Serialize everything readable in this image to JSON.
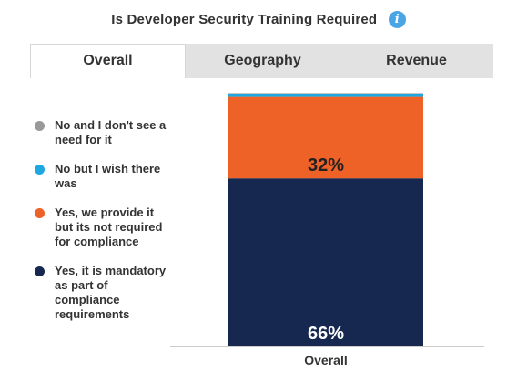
{
  "header": {
    "title": "Is Developer Security Training Required",
    "info_icon": "info-icon"
  },
  "tabs": [
    {
      "label": "Overall",
      "active": true
    },
    {
      "label": "Geography",
      "active": false
    },
    {
      "label": "Revenue",
      "active": false
    }
  ],
  "legend": {
    "items": [
      {
        "label": "No and I don't see a need for it",
        "color": "#999999"
      },
      {
        "label": "No but I wish there was",
        "color": "#1ea7e1"
      },
      {
        "label": "Yes, we provide it but its not required for compliance",
        "color": "#ee6127"
      },
      {
        "label": "Yes, it is mandatory as part of compliance requirements",
        "color": "#16284f"
      }
    ]
  },
  "colors": {
    "no_need": "#999999",
    "wish": "#1ea7e1",
    "provided": "#ee6127",
    "mandatory": "#16284f"
  },
  "chart_data": {
    "type": "bar",
    "stacked": true,
    "categories": [
      "Overall"
    ],
    "series": [
      {
        "name": "Yes, it is mandatory as part of compliance requirements",
        "values": [
          66
        ],
        "color": "#16284f",
        "data_label": "66%"
      },
      {
        "name": "Yes, we provide it but its not required for compliance",
        "values": [
          32
        ],
        "color": "#ee6127",
        "data_label": "32%"
      },
      {
        "name": "No but I wish there was",
        "values": [
          1.3
        ],
        "color": "#1ea7e1",
        "data_label": ""
      },
      {
        "name": "No and I don't see a need for it",
        "values": [
          0.2
        ],
        "color": "#999999",
        "data_label": ""
      }
    ],
    "xlabel": "",
    "ylabel": "",
    "ylim": [
      0,
      100
    ],
    "grid": false,
    "legend_position": "left"
  }
}
